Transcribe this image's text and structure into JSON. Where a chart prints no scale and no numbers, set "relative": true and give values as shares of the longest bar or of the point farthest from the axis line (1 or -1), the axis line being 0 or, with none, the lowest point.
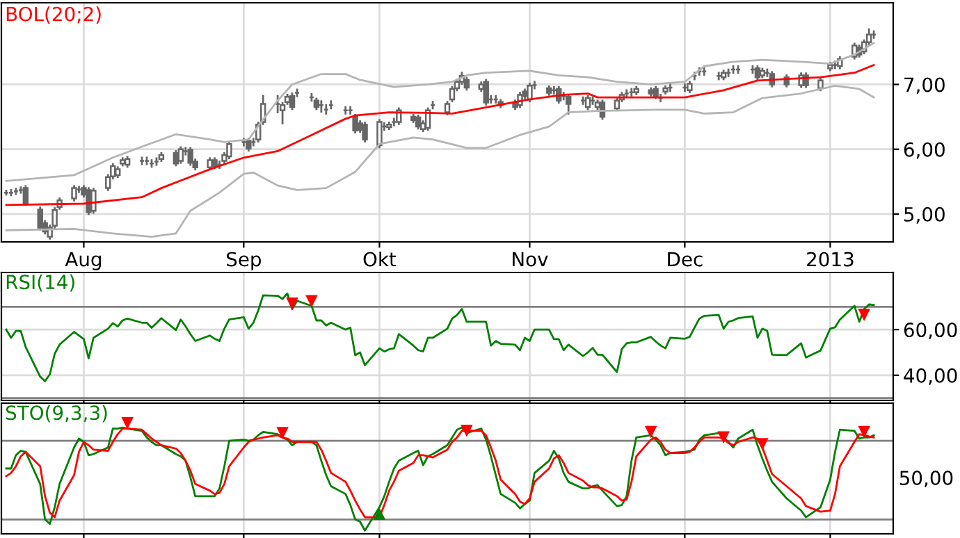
{
  "chart_data": [
    {
      "type": "candlestick",
      "title": "BOL(20;2)",
      "color": "#666666",
      "grid": true,
      "x": [
        "2012-07-16",
        "2012-07-17",
        "2012-07-18",
        "2012-07-19",
        "2012-07-20",
        "2012-07-23",
        "2012-07-24",
        "2012-07-25",
        "2012-07-26",
        "2012-07-27",
        "2012-07-30",
        "2012-07-31",
        "2012-08-01",
        "2012-08-02",
        "2012-08-03",
        "2012-08-06",
        "2012-08-07",
        "2012-08-08",
        "2012-08-09",
        "2012-08-10",
        "2012-08-13",
        "2012-08-14",
        "2012-08-15",
        "2012-08-16",
        "2012-08-17",
        "2012-08-20",
        "2012-08-21",
        "2012-08-22",
        "2012-08-23",
        "2012-08-24",
        "2012-08-27",
        "2012-08-28",
        "2012-08-29",
        "2012-08-30",
        "2012-08-31",
        "2012-09-03",
        "2012-09-04",
        "2012-09-05",
        "2012-09-06",
        "2012-09-07",
        "2012-09-10",
        "2012-09-11",
        "2012-09-12",
        "2012-09-13",
        "2012-09-14",
        "2012-09-17",
        "2012-09-18",
        "2012-09-19",
        "2012-09-20",
        "2012-09-21",
        "2012-09-24",
        "2012-09-25",
        "2012-09-26",
        "2012-09-27",
        "2012-09-28",
        "2012-10-01",
        "2012-10-02",
        "2012-10-03",
        "2012-10-04",
        "2012-10-05",
        "2012-10-08",
        "2012-10-09",
        "2012-10-10",
        "2012-10-11",
        "2012-10-12",
        "2012-10-15",
        "2012-10-16",
        "2012-10-17",
        "2012-10-18",
        "2012-10-19",
        "2012-10-22",
        "2012-10-23",
        "2012-10-24",
        "2012-10-25",
        "2012-10-26",
        "2012-10-29",
        "2012-10-30",
        "2012-10-31",
        "2012-11-01",
        "2012-11-02",
        "2012-11-05",
        "2012-11-06",
        "2012-11-07",
        "2012-11-08",
        "2012-11-09",
        "2012-11-12",
        "2012-11-13",
        "2012-11-14",
        "2012-11-15",
        "2012-11-16",
        "2012-11-19",
        "2012-11-20",
        "2012-11-21",
        "2012-11-22",
        "2012-11-23",
        "2012-11-26",
        "2012-11-27",
        "2012-11-28",
        "2012-11-29",
        "2012-11-30",
        "2012-12-03",
        "2012-12-04",
        "2012-12-05",
        "2012-12-06",
        "2012-12-07",
        "2012-12-10",
        "2012-12-11",
        "2012-12-12",
        "2012-12-13",
        "2012-12-14",
        "2012-12-17",
        "2012-12-18",
        "2012-12-19",
        "2012-12-20",
        "2012-12-21",
        "2012-12-24",
        "2012-12-27",
        "2012-12-28",
        "2012-12-31",
        "2013-01-02",
        "2013-01-03",
        "2013-01-04",
        "2013-01-07",
        "2013-01-08",
        "2013-01-09",
        "2013-01-10",
        "2013-01-11"
      ],
      "ohlc": [
        [
          5.33,
          5.36,
          5.3,
          5.33
        ],
        [
          5.33,
          5.37,
          5.29,
          5.33
        ],
        [
          5.35,
          5.39,
          5.31,
          5.35
        ],
        [
          5.37,
          5.41,
          5.33,
          5.37
        ],
        [
          5.4,
          5.43,
          5.14,
          5.17
        ],
        [
          5.07,
          5.1,
          4.76,
          4.79
        ],
        [
          4.86,
          4.89,
          4.7,
          4.73
        ],
        [
          4.65,
          4.82,
          4.62,
          4.79
        ],
        [
          4.82,
          5.09,
          4.79,
          5.06
        ],
        [
          5.11,
          5.24,
          5.08,
          5.21
        ],
        [
          5.24,
          5.43,
          5.21,
          5.4
        ],
        [
          5.38,
          5.42,
          5.34,
          5.38
        ],
        [
          5.4,
          5.43,
          5.27,
          5.3
        ],
        [
          5.37,
          5.4,
          5.0,
          5.03
        ],
        [
          5.05,
          5.39,
          5.02,
          5.36
        ],
        [
          5.4,
          5.6,
          5.37,
          5.57
        ],
        [
          5.58,
          5.77,
          5.55,
          5.74
        ],
        [
          5.6,
          5.72,
          5.57,
          5.69
        ],
        [
          5.78,
          5.86,
          5.75,
          5.83
        ],
        [
          5.76,
          5.88,
          5.73,
          5.85
        ],
        [
          5.82,
          5.87,
          5.77,
          5.82
        ],
        [
          5.82,
          5.87,
          5.77,
          5.82
        ],
        [
          5.78,
          5.83,
          5.73,
          5.78
        ],
        [
          5.81,
          5.86,
          5.76,
          5.81
        ],
        [
          5.85,
          5.94,
          5.82,
          5.91
        ],
        [
          5.94,
          5.97,
          5.75,
          5.78
        ],
        [
          5.82,
          6.03,
          5.79,
          6.0
        ],
        [
          5.97,
          6.02,
          5.92,
          5.97
        ],
        [
          5.99,
          6.02,
          5.76,
          5.79
        ],
        [
          5.81,
          5.84,
          5.69,
          5.72
        ],
        [
          5.72,
          5.86,
          5.69,
          5.83
        ],
        [
          5.83,
          5.86,
          5.71,
          5.74
        ],
        [
          5.76,
          5.81,
          5.71,
          5.76
        ],
        [
          5.82,
          5.94,
          5.79,
          5.91
        ],
        [
          5.89,
          6.11,
          5.86,
          6.08
        ],
        [
          6.11,
          6.16,
          6.06,
          6.11
        ],
        [
          6.13,
          6.16,
          5.98,
          6.01
        ],
        [
          6.11,
          6.16,
          6.06,
          6.11
        ],
        [
          6.15,
          6.41,
          6.12,
          6.38
        ],
        [
          6.42,
          6.82,
          6.39,
          6.7
        ],
        [
          6.7,
          6.82,
          6.57,
          6.7
        ],
        [
          6.6,
          6.71,
          6.4,
          6.68
        ],
        [
          6.73,
          6.84,
          6.7,
          6.81
        ],
        [
          6.82,
          6.86,
          6.62,
          6.65
        ],
        [
          6.87,
          6.92,
          6.82,
          6.87
        ],
        [
          6.8,
          6.85,
          6.75,
          6.8
        ],
        [
          6.75,
          6.78,
          6.62,
          6.65
        ],
        [
          6.68,
          6.74,
          6.58,
          6.68
        ],
        [
          6.61,
          6.68,
          6.55,
          6.61
        ],
        [
          6.68,
          6.74,
          6.63,
          6.68
        ],
        [
          6.6,
          6.65,
          6.55,
          6.6
        ],
        [
          6.6,
          6.65,
          6.55,
          6.6
        ],
        [
          6.5,
          6.53,
          6.26,
          6.29
        ],
        [
          6.4,
          6.43,
          6.27,
          6.3
        ],
        [
          6.38,
          6.41,
          6.12,
          6.15
        ],
        [
          6.06,
          6.45,
          6.03,
          6.42
        ],
        [
          6.35,
          6.4,
          6.3,
          6.35
        ],
        [
          6.34,
          6.41,
          6.31,
          6.38
        ],
        [
          6.42,
          6.47,
          6.37,
          6.42
        ],
        [
          6.42,
          6.63,
          6.39,
          6.6
        ],
        [
          6.5,
          6.53,
          6.42,
          6.45
        ],
        [
          6.49,
          6.52,
          6.32,
          6.35
        ],
        [
          6.31,
          6.43,
          6.28,
          6.4
        ],
        [
          6.33,
          6.63,
          6.3,
          6.6
        ],
        [
          6.68,
          6.73,
          6.63,
          6.68
        ],
        [
          6.57,
          6.73,
          6.54,
          6.7
        ],
        [
          6.77,
          6.96,
          6.74,
          6.93
        ],
        [
          6.94,
          7.07,
          6.91,
          7.04
        ],
        [
          7.04,
          7.18,
          7.01,
          7.13
        ],
        [
          7.07,
          7.1,
          6.92,
          6.95
        ],
        [
          6.93,
          7.03,
          6.9,
          7.0
        ],
        [
          7.04,
          7.07,
          6.69,
          6.72
        ],
        [
          6.77,
          6.82,
          6.72,
          6.77
        ],
        [
          6.77,
          6.82,
          6.72,
          6.77
        ],
        [
          6.73,
          6.76,
          6.65,
          6.68
        ],
        [
          6.72,
          6.75,
          6.62,
          6.65
        ],
        [
          6.68,
          6.87,
          6.65,
          6.84
        ],
        [
          6.89,
          6.92,
          6.79,
          6.82
        ],
        [
          6.77,
          7.01,
          6.74,
          6.98
        ],
        [
          6.99,
          7.04,
          6.94,
          6.99
        ],
        [
          6.94,
          6.97,
          6.84,
          6.87
        ],
        [
          6.91,
          6.96,
          6.86,
          6.91
        ],
        [
          6.93,
          6.96,
          6.72,
          6.75
        ],
        [
          6.82,
          6.87,
          6.77,
          6.82
        ],
        [
          6.81,
          6.84,
          6.55,
          6.7
        ],
        [
          6.75,
          6.8,
          6.7,
          6.75
        ],
        [
          6.65,
          6.82,
          6.62,
          6.79
        ],
        [
          6.75,
          6.8,
          6.7,
          6.75
        ],
        [
          6.65,
          6.75,
          6.62,
          6.72
        ],
        [
          6.72,
          6.75,
          6.47,
          6.5
        ],
        [
          6.63,
          6.78,
          6.6,
          6.75
        ],
        [
          6.77,
          6.87,
          6.74,
          6.84
        ],
        [
          6.86,
          6.91,
          6.81,
          6.86
        ],
        [
          6.88,
          6.93,
          6.83,
          6.88
        ],
        [
          6.88,
          6.96,
          6.85,
          6.93
        ],
        [
          6.91,
          6.94,
          6.83,
          6.86
        ],
        [
          6.93,
          6.96,
          6.79,
          6.82
        ],
        [
          6.79,
          6.84,
          6.74,
          6.79
        ],
        [
          6.89,
          6.97,
          6.86,
          6.94
        ],
        [
          6.95,
          7.0,
          6.9,
          6.95
        ],
        [
          6.95,
          7.0,
          6.9,
          6.95
        ],
        [
          6.91,
          7.04,
          6.88,
          7.01
        ],
        [
          7.13,
          7.18,
          7.08,
          7.13
        ],
        [
          7.2,
          7.25,
          7.15,
          7.2
        ],
        [
          7.2,
          7.25,
          7.15,
          7.2
        ],
        [
          7.13,
          7.18,
          7.08,
          7.13
        ],
        [
          7.11,
          7.21,
          7.08,
          7.18
        ],
        [
          7.18,
          7.23,
          7.13,
          7.18
        ],
        [
          7.23,
          7.28,
          7.18,
          7.23
        ],
        [
          7.23,
          7.28,
          7.18,
          7.23
        ],
        [
          7.23,
          7.28,
          7.18,
          7.23
        ],
        [
          7.25,
          7.28,
          7.08,
          7.11
        ],
        [
          7.14,
          7.24,
          7.11,
          7.21
        ],
        [
          7.18,
          7.23,
          7.13,
          7.18
        ],
        [
          7.16,
          7.19,
          6.97,
          7.0
        ],
        [
          7.11,
          7.14,
          6.97,
          7.0
        ],
        [
          6.99,
          7.17,
          6.96,
          7.14
        ],
        [
          7.14,
          7.17,
          6.96,
          6.99
        ],
        [
          6.94,
          7.09,
          6.91,
          7.06
        ],
        [
          7.25,
          7.33,
          7.22,
          7.3
        ],
        [
          7.3,
          7.35,
          7.25,
          7.3
        ],
        [
          7.28,
          7.42,
          7.25,
          7.39
        ],
        [
          7.43,
          7.63,
          7.4,
          7.6
        ],
        [
          7.57,
          7.6,
          7.43,
          7.46
        ],
        [
          7.51,
          7.68,
          7.48,
          7.65
        ],
        [
          7.65,
          7.85,
          7.62,
          7.77
        ],
        [
          7.77,
          7.82,
          7.72,
          7.77
        ]
      ],
      "series": [
        {
          "type": "line",
          "color": "#ff0000",
          "x": [
            "2012-07-16",
            "2012-08-01",
            "2012-08-13",
            "2012-08-17",
            "2012-08-27",
            "2012-09-03",
            "2012-09-10",
            "2012-09-17",
            "2012-09-24",
            "2012-09-26",
            "2012-10-03",
            "2012-10-11",
            "2012-10-16",
            "2012-10-19",
            "2012-11-01",
            "2012-11-08",
            "2012-11-13",
            "2012-11-15",
            "2012-12-03",
            "2012-12-11",
            "2012-12-18",
            "2012-12-31",
            "2013-01-07",
            "2013-01-11"
          ],
          "values": [
            5.14,
            5.16,
            5.26,
            5.4,
            5.69,
            5.87,
            5.97,
            6.22,
            6.47,
            6.52,
            6.57,
            6.56,
            6.55,
            6.59,
            6.77,
            6.84,
            6.86,
            6.8,
            6.8,
            6.91,
            7.06,
            7.11,
            7.18,
            7.3
          ]
        },
        {
          "type": "line",
          "color": "#b4b4b4",
          "x": [
            "2012-07-16",
            "2012-07-30",
            "2012-08-07",
            "2012-08-13",
            "2012-08-20",
            "2012-08-27",
            "2012-08-30",
            "2012-09-04",
            "2012-09-06",
            "2012-09-10",
            "2012-09-13",
            "2012-09-19",
            "2012-09-24",
            "2012-09-27",
            "2012-10-04",
            "2012-10-11",
            "2012-10-16",
            "2012-10-19",
            "2012-10-23",
            "2012-11-01",
            "2012-11-07",
            "2012-11-13",
            "2012-11-19",
            "2012-11-26",
            "2012-12-03",
            "2012-12-07",
            "2012-12-13",
            "2012-12-19",
            "2012-12-27",
            "2013-01-02",
            "2013-01-07",
            "2013-01-11"
          ],
          "values": [
            5.51,
            5.6,
            5.87,
            6.04,
            6.23,
            6.15,
            6.11,
            6.15,
            6.36,
            6.75,
            7.0,
            7.16,
            7.16,
            7.07,
            6.96,
            7.0,
            7.04,
            7.14,
            7.18,
            7.21,
            7.14,
            7.11,
            7.04,
            7.0,
            7.04,
            7.28,
            7.35,
            7.38,
            7.35,
            7.32,
            7.46,
            7.64
          ]
        },
        {
          "type": "line",
          "color": "#b4b4b4",
          "x": [
            "2012-07-16",
            "2012-07-30",
            "2012-08-07",
            "2012-08-15",
            "2012-08-20",
            "2012-08-23",
            "2012-08-29",
            "2012-09-03",
            "2012-09-05",
            "2012-09-10",
            "2012-09-14",
            "2012-09-20",
            "2012-09-26",
            "2012-10-01",
            "2012-10-08",
            "2012-10-12",
            "2012-10-19",
            "2012-10-23",
            "2012-10-30",
            "2012-11-05",
            "2012-11-09",
            "2012-11-15",
            "2012-11-27",
            "2012-12-03",
            "2012-12-07",
            "2012-12-13",
            "2012-12-19",
            "2012-12-27",
            "2013-01-03",
            "2013-01-08",
            "2013-01-11"
          ],
          "values": [
            4.75,
            4.77,
            4.7,
            4.65,
            4.7,
            5.05,
            5.33,
            5.62,
            5.64,
            5.44,
            5.37,
            5.4,
            5.65,
            6.08,
            6.18,
            6.15,
            6.02,
            6.02,
            6.22,
            6.35,
            6.57,
            6.59,
            6.61,
            6.61,
            6.55,
            6.57,
            6.79,
            6.86,
            6.98,
            6.93,
            6.8
          ]
        }
      ],
      "xlim": [
        "2012-07-15",
        "2013-01-15"
      ],
      "xticks": [
        {
          "value": "2012-08-01",
          "label": "Aug"
        },
        {
          "value": "2012-09-03",
          "label": "Sep"
        },
        {
          "value": "2012-10-01",
          "label": "Okt"
        },
        {
          "value": "2012-11-01",
          "label": "Nov"
        },
        {
          "value": "2012-12-03",
          "label": "Dec"
        },
        {
          "value": "2013-01-02",
          "label": "2013"
        }
      ],
      "ylim": [
        4.57,
        8.26
      ],
      "yticks": [
        {
          "value": 5,
          "label": "5,00"
        },
        {
          "value": 6,
          "label": "6,00"
        },
        {
          "value": 7,
          "label": "7,00"
        }
      ]
    },
    {
      "type": "line",
      "title": "RSI(14)",
      "grid": true,
      "tick_labels": "y",
      "x": [
        "2012-07-16",
        "2012-07-17",
        "2012-07-18",
        "2012-07-19",
        "2012-07-20",
        "2012-07-23",
        "2012-07-24",
        "2012-07-25",
        "2012-07-26",
        "2012-07-27",
        "2012-07-30",
        "2012-07-31",
        "2012-08-01",
        "2012-08-02",
        "2012-08-03",
        "2012-08-06",
        "2012-08-07",
        "2012-08-08",
        "2012-08-09",
        "2012-08-10",
        "2012-08-13",
        "2012-08-14",
        "2012-08-15",
        "2012-08-16",
        "2012-08-17",
        "2012-08-20",
        "2012-08-21",
        "2012-08-22",
        "2012-08-23",
        "2012-08-24",
        "2012-08-27",
        "2012-08-28",
        "2012-08-29",
        "2012-08-30",
        "2012-08-31",
        "2012-09-03",
        "2012-09-04",
        "2012-09-05",
        "2012-09-06",
        "2012-09-07",
        "2012-09-10",
        "2012-09-11",
        "2012-09-12",
        "2012-09-13",
        "2012-09-14",
        "2012-09-17",
        "2012-09-18",
        "2012-09-19",
        "2012-09-20",
        "2012-09-21",
        "2012-09-24",
        "2012-09-25",
        "2012-09-26",
        "2012-09-27",
        "2012-09-28",
        "2012-10-01",
        "2012-10-02",
        "2012-10-03",
        "2012-10-04",
        "2012-10-05",
        "2012-10-08",
        "2012-10-09",
        "2012-10-10",
        "2012-10-11",
        "2012-10-12",
        "2012-10-15",
        "2012-10-16",
        "2012-10-17",
        "2012-10-18",
        "2012-10-19",
        "2012-10-22",
        "2012-10-23",
        "2012-10-24",
        "2012-10-25",
        "2012-10-26",
        "2012-10-29",
        "2012-10-30",
        "2012-10-31",
        "2012-11-01",
        "2012-11-02",
        "2012-11-05",
        "2012-11-06",
        "2012-11-07",
        "2012-11-08",
        "2012-11-09",
        "2012-11-12",
        "2012-11-13",
        "2012-11-14",
        "2012-11-15",
        "2012-11-16",
        "2012-11-19",
        "2012-11-20",
        "2012-11-21",
        "2012-11-22",
        "2012-11-23",
        "2012-11-26",
        "2012-11-27",
        "2012-11-28",
        "2012-11-29",
        "2012-11-30",
        "2012-12-03",
        "2012-12-04",
        "2012-12-05",
        "2012-12-06",
        "2012-12-07",
        "2012-12-10",
        "2012-12-11",
        "2012-12-12",
        "2012-12-13",
        "2012-12-14",
        "2012-12-17",
        "2012-12-18",
        "2012-12-19",
        "2012-12-20",
        "2012-12-21",
        "2012-12-24",
        "2012-12-27",
        "2012-12-28",
        "2012-12-31",
        "2013-01-02",
        "2013-01-03",
        "2013-01-04",
        "2013-01-07",
        "2013-01-08",
        "2013-01-09",
        "2013-01-10",
        "2013-01-11"
      ],
      "series": [
        {
          "color": "#008000",
          "values": [
            60,
            56.4,
            59.4,
            59.4,
            52.4,
            39.4,
            37.4,
            40.4,
            49.4,
            53.4,
            59,
            57.4,
            55.8,
            47.4,
            56.4,
            60.4,
            62.8,
            61.4,
            64,
            64.8,
            63,
            63,
            60.8,
            62.8,
            65,
            59.8,
            64.4,
            61.4,
            58,
            55,
            57.4,
            56,
            55,
            60.4,
            64.4,
            65.4,
            60.4,
            63,
            68.4,
            75,
            74.8,
            73.4,
            75.8,
            69,
            72.6,
            70.4,
            64,
            64,
            61.8,
            63,
            60,
            60.8,
            48.8,
            50,
            44.4,
            51.8,
            50.4,
            51.4,
            51.8,
            58,
            53,
            51,
            50.4,
            56.4,
            56.4,
            60.4,
            64.8,
            66.4,
            69,
            63.4,
            63.4,
            63.4,
            53,
            55,
            53.8,
            53.4,
            51,
            56.4,
            55,
            60,
            60,
            55.8,
            55.8,
            51,
            53.4,
            48.4,
            50,
            52,
            49,
            49,
            41.4,
            51.4,
            54,
            54.4,
            54.4,
            56.8,
            54.8,
            53,
            51.8,
            56.4,
            56,
            56.8,
            60.8,
            64.8,
            66,
            66.4,
            60.4,
            63.4,
            64,
            65,
            65.8,
            56.4,
            60.4,
            59.4,
            49,
            48.8,
            54,
            47.8,
            50.8,
            60.4,
            61,
            64.4,
            70.4,
            63.4,
            69,
            71,
            70.8
          ]
        },
        {
          "type": "scatter",
          "color": "#ff0000",
          "marker": "triangle",
          "x": [
            "2012-09-13",
            "2012-09-17",
            "2013-01-09"
          ],
          "values": [
            71.4,
            72.4,
            66.4
          ]
        }
      ],
      "ref_lines": [
        {
          "axis": "y",
          "value": 70,
          "color": "#808080"
        },
        {
          "axis": "y",
          "value": 30,
          "color": "#808080"
        }
      ],
      "xlim": [
        "2012-07-15",
        "2013-01-15"
      ],
      "xticks": [
        {
          "value": "2012-08-01",
          "label": null
        },
        {
          "value": "2012-09-03",
          "label": null
        },
        {
          "value": "2012-10-01",
          "label": null
        },
        {
          "value": "2012-11-01",
          "label": null
        },
        {
          "value": "2012-12-03",
          "label": null
        },
        {
          "value": "2013-01-02",
          "label": null
        }
      ],
      "ylim": [
        29,
        85
      ],
      "yticks": [
        {
          "value": 40,
          "label": "40,00"
        },
        {
          "value": 60,
          "label": "60,00"
        }
      ]
    },
    {
      "type": "line",
      "title": "STO(9,3,3)",
      "grid": true,
      "tick_labels": "y",
      "x": [
        "2012-07-16",
        "2012-07-17",
        "2012-07-18",
        "2012-07-19",
        "2012-07-20",
        "2012-07-23",
        "2012-07-24",
        "2012-07-25",
        "2012-07-26",
        "2012-07-27",
        "2012-07-30",
        "2012-07-31",
        "2012-08-01",
        "2012-08-02",
        "2012-08-03",
        "2012-08-06",
        "2012-08-07",
        "2012-08-08",
        "2012-08-09",
        "2012-08-10",
        "2012-08-13",
        "2012-08-14",
        "2012-08-15",
        "2012-08-16",
        "2012-08-17",
        "2012-08-20",
        "2012-08-21",
        "2012-08-22",
        "2012-08-23",
        "2012-08-24",
        "2012-08-27",
        "2012-08-28",
        "2012-08-29",
        "2012-08-30",
        "2012-08-31",
        "2012-09-03",
        "2012-09-04",
        "2012-09-05",
        "2012-09-06",
        "2012-09-07",
        "2012-09-10",
        "2012-09-11",
        "2012-09-12",
        "2012-09-13",
        "2012-09-14",
        "2012-09-17",
        "2012-09-18",
        "2012-09-19",
        "2012-09-20",
        "2012-09-21",
        "2012-09-24",
        "2012-09-25",
        "2012-09-26",
        "2012-09-27",
        "2012-09-28",
        "2012-10-01",
        "2012-10-02",
        "2012-10-03",
        "2012-10-04",
        "2012-10-05",
        "2012-10-08",
        "2012-10-09",
        "2012-10-10",
        "2012-10-11",
        "2012-10-12",
        "2012-10-15",
        "2012-10-16",
        "2012-10-17",
        "2012-10-18",
        "2012-10-19",
        "2012-10-22",
        "2012-10-23",
        "2012-10-24",
        "2012-10-25",
        "2012-10-26",
        "2012-10-29",
        "2012-10-30",
        "2012-10-31",
        "2012-11-01",
        "2012-11-02",
        "2012-11-05",
        "2012-11-06",
        "2012-11-07",
        "2012-11-08",
        "2012-11-09",
        "2012-11-12",
        "2012-11-13",
        "2012-11-14",
        "2012-11-15",
        "2012-11-16",
        "2012-11-19",
        "2012-11-20",
        "2012-11-21",
        "2012-11-22",
        "2012-11-23",
        "2012-11-26",
        "2012-11-27",
        "2012-11-28",
        "2012-11-29",
        "2012-11-30",
        "2012-12-03",
        "2012-12-04",
        "2012-12-05",
        "2012-12-06",
        "2012-12-07",
        "2012-12-10",
        "2012-12-11",
        "2012-12-12",
        "2012-12-13",
        "2012-12-14",
        "2012-12-17",
        "2012-12-18",
        "2012-12-19",
        "2012-12-20",
        "2012-12-21",
        "2012-12-24",
        "2012-12-27",
        "2012-12-28",
        "2012-12-31",
        "2013-01-02",
        "2013-01-03",
        "2013-01-04",
        "2013-01-07",
        "2013-01-08",
        "2013-01-09",
        "2013-01-10",
        "2013-01-11"
      ],
      "series": [
        {
          "color": "#008000",
          "values": [
            0.59,
            0.59,
            0.71,
            0.75,
            0.74,
            0.45,
            0.13,
            0.09,
            0.24,
            0.45,
            0.78,
            0.86,
            0.83,
            0.71,
            0.72,
            0.78,
            0.95,
            0.95,
            0.96,
            0.95,
            0.93,
            0.87,
            0.83,
            0.8,
            0.8,
            0.72,
            0.7,
            0.66,
            0.51,
            0.34,
            0.34,
            0.34,
            0.41,
            0.61,
            0.84,
            0.85,
            0.84,
            0.85,
            0.89,
            0.92,
            0.9,
            0.87,
            0.85,
            0.8,
            0.83,
            0.83,
            0.8,
            0.66,
            0.53,
            0.43,
            0.36,
            0.26,
            0.13,
            0.11,
            0.03,
            0.24,
            0.34,
            0.47,
            0.59,
            0.66,
            0.73,
            0.75,
            0.62,
            0.7,
            0.72,
            0.8,
            0.87,
            0.94,
            0.96,
            0.91,
            0.95,
            0.85,
            0.7,
            0.53,
            0.36,
            0.28,
            0.23,
            0.27,
            0.3,
            0.55,
            0.66,
            0.75,
            0.68,
            0.55,
            0.47,
            0.41,
            0.41,
            0.43,
            0.44,
            0.39,
            0.25,
            0.26,
            0.34,
            0.66,
            0.87,
            0.89,
            0.85,
            0.8,
            0.71,
            0.73,
            0.74,
            0.75,
            0.76,
            0.85,
            0.89,
            0.91,
            0.87,
            0.83,
            0.78,
            0.86,
            0.94,
            0.8,
            0.68,
            0.57,
            0.47,
            0.32,
            0.21,
            0.15,
            0.24,
            0.49,
            0.74,
            0.94,
            0.93,
            0.86,
            0.87,
            0.87,
            0.89
          ]
        },
        {
          "color": "#ff0000",
          "values": [
            0.52,
            0.55,
            0.61,
            0.7,
            0.74,
            0.61,
            0.34,
            0.19,
            0.15,
            0.3,
            0.53,
            0.74,
            0.83,
            0.8,
            0.76,
            0.75,
            0.83,
            0.9,
            0.95,
            0.95,
            0.94,
            0.9,
            0.86,
            0.83,
            0.8,
            0.77,
            0.73,
            0.66,
            0.57,
            0.45,
            0.39,
            0.36,
            0.37,
            0.45,
            0.61,
            0.78,
            0.83,
            0.85,
            0.86,
            0.87,
            0.89,
            0.87,
            0.86,
            0.83,
            0.83,
            0.83,
            0.83,
            0.76,
            0.66,
            0.55,
            0.47,
            0.39,
            0.3,
            0.22,
            0.15,
            0.15,
            0.26,
            0.39,
            0.47,
            0.57,
            0.64,
            0.71,
            0.71,
            0.7,
            0.69,
            0.76,
            0.83,
            0.87,
            0.93,
            0.93,
            0.93,
            0.89,
            0.78,
            0.66,
            0.49,
            0.36,
            0.29,
            0.27,
            0.32,
            0.47,
            0.59,
            0.68,
            0.71,
            0.64,
            0.55,
            0.48,
            0.44,
            0.42,
            0.42,
            0.41,
            0.34,
            0.3,
            0.31,
            0.47,
            0.7,
            0.85,
            0.87,
            0.83,
            0.76,
            0.73,
            0.73,
            0.74,
            0.78,
            0.83,
            0.87,
            0.87,
            0.86,
            0.82,
            0.8,
            0.83,
            0.87,
            0.86,
            0.78,
            0.66,
            0.54,
            0.43,
            0.32,
            0.25,
            0.2,
            0.21,
            0.36,
            0.61,
            0.83,
            0.9,
            0.89,
            0.88,
            0.87
          ]
        },
        {
          "type": "scatter",
          "color": "#ff0000",
          "marker": "triangle",
          "x": [
            "2012-08-10",
            "2012-09-11",
            "2012-10-19",
            "2012-11-26",
            "2012-12-11",
            "2012-12-19",
            "2013-01-09"
          ],
          "values": [
            1.0,
            0.91,
            0.93,
            0.92,
            0.87,
            0.81,
            0.92
          ]
        },
        {
          "type": "scatter",
          "color": "#008000",
          "marker": "triangle",
          "x": [
            "2012-10-01"
          ],
          "values": [
            0.18
          ]
        }
      ],
      "ref_lines": [
        {
          "axis": "y",
          "value": 0.84,
          "color": "#808080"
        },
        {
          "axis": "y",
          "value": 0.13,
          "color": "#808080"
        }
      ],
      "xlim": [
        "2012-07-15",
        "2013-01-15"
      ],
      "xticks": [
        {
          "value": "2012-08-01",
          "label": null
        },
        {
          "value": "2012-09-03",
          "label": null
        },
        {
          "value": "2012-10-01",
          "label": null
        },
        {
          "value": "2012-11-01",
          "label": null
        },
        {
          "value": "2012-12-03",
          "label": null
        },
        {
          "value": "2013-01-02",
          "label": null
        }
      ],
      "relative": true,
      "annotations": [
        "50,00"
      ]
    }
  ]
}
